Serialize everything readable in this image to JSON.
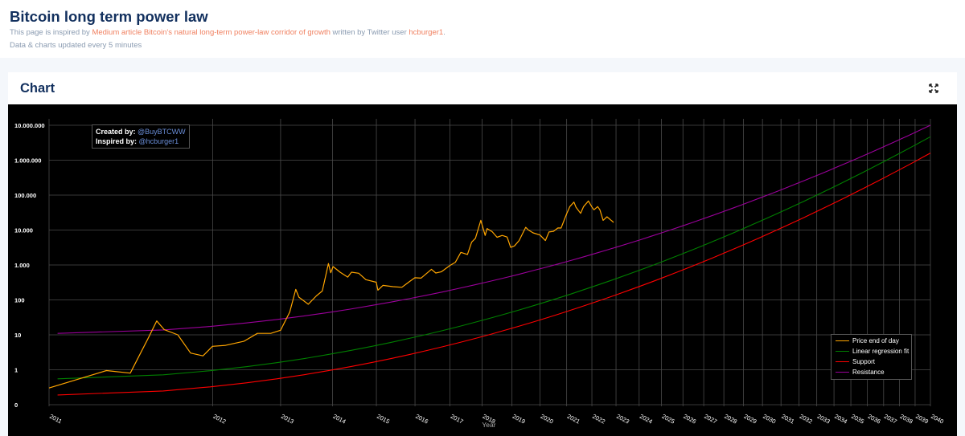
{
  "header": {
    "title": "Bitcoin long term power law",
    "intro_prefix": "This page is inspired by ",
    "article_link": "Medium article Bitcoin's natural long-term power-law corridor of growth",
    "intro_middle": " written by Twitter user ",
    "author_link": "hcburger1",
    "intro_suffix": ".",
    "update_note": "Data & charts updated every 5 minutes"
  },
  "card": {
    "title": "Chart",
    "expand_icon": "expand-icon"
  },
  "chart_data": {
    "type": "line",
    "title": "",
    "xlabel": "Year",
    "ylabel": "",
    "y_scale": "log",
    "grid": true,
    "legend_position": "bottom-right",
    "background": "#000000",
    "x_ticks": [
      "2011",
      "2012",
      "2013",
      "2014",
      "2015",
      "2016",
      "2017",
      "2018",
      "2019",
      "2020",
      "2021",
      "2022",
      "2023",
      "2024",
      "2025",
      "2026",
      "2027",
      "2028",
      "2029",
      "2030",
      "2031",
      "2032",
      "2033",
      "2034",
      "2035",
      "2036",
      "2037",
      "2038",
      "2039",
      "2040"
    ],
    "y_ticks": [
      {
        "value": 0.1,
        "label": "0"
      },
      {
        "value": 1,
        "label": "1"
      },
      {
        "value": 10,
        "label": "10"
      },
      {
        "value": 100,
        "label": "100"
      },
      {
        "value": 1000,
        "label": "1.000"
      },
      {
        "value": 10000,
        "label": "10.000"
      },
      {
        "value": 100000,
        "label": "100.000"
      },
      {
        "value": 1000000,
        "label": "1.000.000"
      },
      {
        "value": 10000000,
        "label": "10.000.000"
      }
    ],
    "credits": {
      "created_label": "Created by: ",
      "created_handle": "@BuyBTCWW",
      "inspired_label": "Inspired by: ",
      "inspired_handle": "@hcburger1"
    },
    "series": [
      {
        "name": "Price end of day",
        "color": "#ffa500",
        "x": [
          "2011-01-01",
          "2011-02-15",
          "2011-04-01",
          "2011-05-15",
          "2011-06-08",
          "2011-07-01",
          "2011-08-15",
          "2011-10-01",
          "2011-11-20",
          "2011-12-31",
          "2012-03-01",
          "2012-06-01",
          "2012-08-15",
          "2012-11-01",
          "2013-01-01",
          "2013-03-01",
          "2013-04-10",
          "2013-05-01",
          "2013-07-05",
          "2013-09-01",
          "2013-10-15",
          "2013-11-30",
          "2013-12-18",
          "2014-01-05",
          "2014-03-01",
          "2014-05-01",
          "2014-06-01",
          "2014-08-01",
          "2014-10-01",
          "2014-12-31",
          "2015-01-14",
          "2015-03-01",
          "2015-06-01",
          "2015-08-25",
          "2015-11-05",
          "2015-12-31",
          "2016-03-01",
          "2016-06-17",
          "2016-08-01",
          "2016-10-01",
          "2016-12-31",
          "2017-03-01",
          "2017-05-01",
          "2017-07-15",
          "2017-09-01",
          "2017-10-15",
          "2017-12-17",
          "2018-02-06",
          "2018-03-01",
          "2018-05-01",
          "2018-06-30",
          "2018-09-01",
          "2018-11-01",
          "2018-12-15",
          "2019-02-01",
          "2019-04-01",
          "2019-06-26",
          "2019-08-01",
          "2019-10-01",
          "2019-12-31",
          "2020-03-13",
          "2020-05-01",
          "2020-07-01",
          "2020-09-01",
          "2020-10-15",
          "2020-12-31",
          "2021-02-15",
          "2021-04-14",
          "2021-05-15",
          "2021-07-20",
          "2021-09-01",
          "2021-11-10",
          "2021-12-31",
          "2022-02-01",
          "2022-03-28",
          "2022-05-01",
          "2022-06-18",
          "2022-08-15",
          "2022-10-15",
          "2022-11-10",
          "2022-11-25"
        ],
        "y": [
          0.3,
          0.95,
          0.8,
          8,
          25,
          14,
          10,
          3,
          2.5,
          4.7,
          5,
          6.5,
          11,
          11,
          13.5,
          45,
          200,
          120,
          75,
          130,
          180,
          1100,
          600,
          900,
          620,
          450,
          620,
          580,
          380,
          320,
          190,
          260,
          240,
          230,
          330,
          430,
          420,
          750,
          590,
          640,
          970,
          1200,
          2300,
          2000,
          4500,
          5800,
          19000,
          7000,
          11000,
          9000,
          6200,
          7000,
          6300,
          3200,
          3500,
          5000,
          12000,
          10000,
          8300,
          7200,
          5000,
          8800,
          9200,
          11500,
          11400,
          29000,
          47000,
          63000,
          45000,
          30000,
          47000,
          68000,
          46000,
          38000,
          47000,
          38000,
          19000,
          24000,
          19200,
          17500,
          16500
        ]
      },
      {
        "name": "Linear regression fit",
        "color": "#008000",
        "x": [
          "2011-01-01",
          "2040-01-01"
        ],
        "y": [
          0.55,
          4700000
        ]
      },
      {
        "name": "Support",
        "color": "#ff0000",
        "x": [
          "2011-01-01",
          "2040-01-01"
        ],
        "y": [
          0.19,
          1600000
        ]
      },
      {
        "name": "Resistance",
        "color": "#9b009b",
        "x": [
          "2011-01-01",
          "2040-01-01"
        ],
        "y": [
          11,
          10000000
        ]
      }
    ]
  }
}
